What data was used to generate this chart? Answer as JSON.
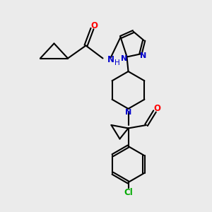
{
  "background_color": "#ebebeb",
  "bond_color": "#000000",
  "nitrogen_color": "#0000cc",
  "oxygen_color": "#ff0000",
  "chlorine_color": "#00aa00",
  "nh_color": "#0000cc",
  "line_width": 1.5,
  "figsize": [
    3.0,
    3.0
  ],
  "dpi": 100,
  "xlim": [
    0,
    10
  ],
  "ylim": [
    0,
    10
  ]
}
